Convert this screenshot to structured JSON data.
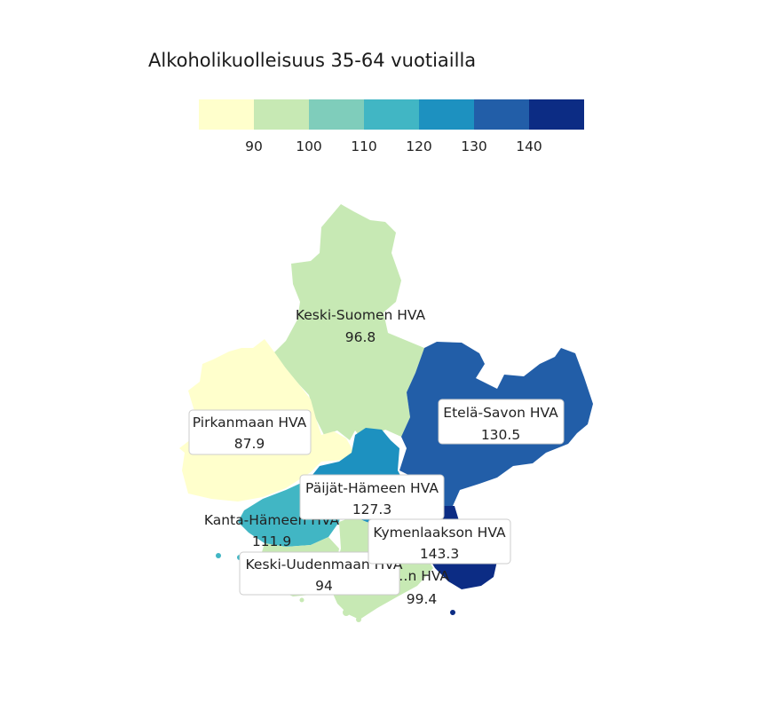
{
  "title": "Alkoholikuolleisuus 35-64 vuotiailla",
  "legend": {
    "colors": [
      "#ffffcc",
      "#c7e9b4",
      "#7fcdbb",
      "#41b6c4",
      "#1d91c0",
      "#225ea8",
      "#0c2c84"
    ],
    "ticks": [
      "90",
      "100",
      "110",
      "120",
      "130",
      "140"
    ]
  },
  "regions": [
    {
      "name": "Keski-Suomen HVA",
      "value": "96.8",
      "color": "#c7e9b4"
    },
    {
      "name": "Pirkanmaan HVA",
      "value": "87.9",
      "color": "#ffffcc"
    },
    {
      "name": "Etelä-Savon HVA",
      "value": "130.5",
      "color": "#225ea8"
    },
    {
      "name": "Päijät-Hämeen HVA",
      "value": "127.3",
      "color": "#1d91c0"
    },
    {
      "name": "Kanta-Hämeen HVA",
      "value": "111.9",
      "color": "#41b6c4"
    },
    {
      "name": "Kymenlaakson HVA",
      "value": "143.3",
      "color": "#0c2c84"
    },
    {
      "name": "Keski-Uudenmaan HVA",
      "value": "94",
      "color": "#c7e9b4"
    },
    {
      "name": "…n HVA",
      "value": "99.4",
      "color": "#c7e9b4"
    }
  ]
}
